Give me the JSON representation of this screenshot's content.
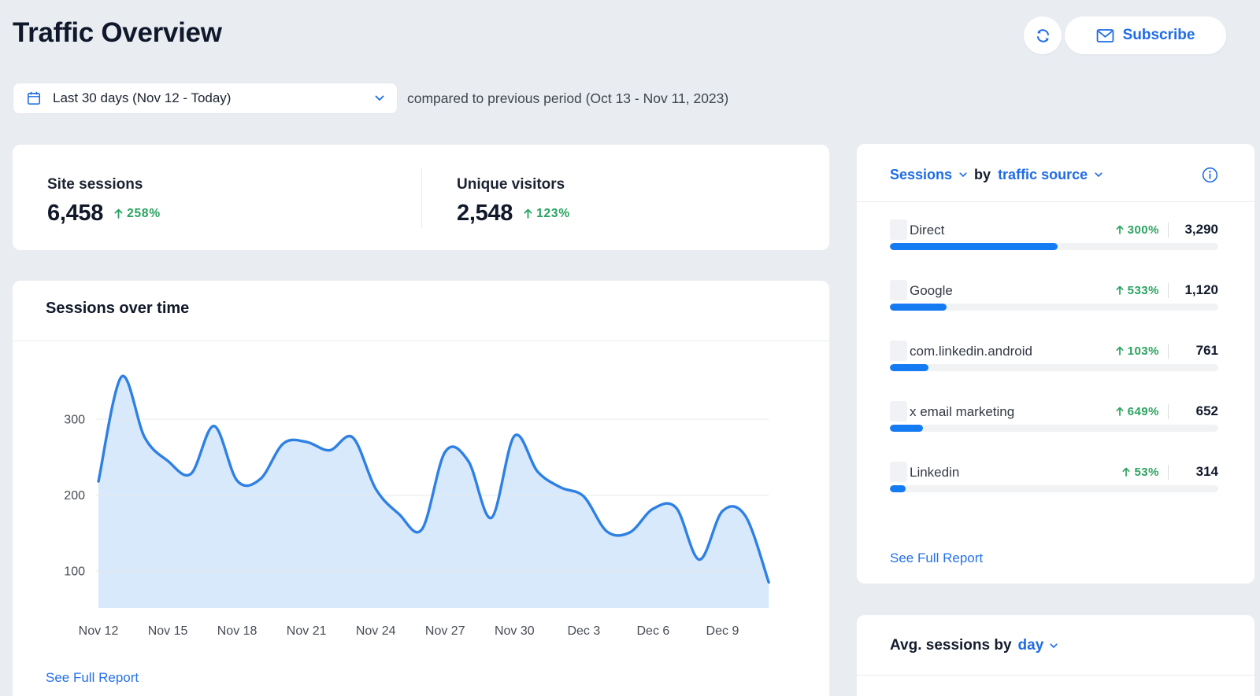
{
  "colors": {
    "accent_blue": "#1e6ce6",
    "bar_blue": "#157bf2",
    "chart_line_blue": "#2e80e4",
    "chart_fill_blue": "#d7e9fb",
    "positive_green": "#2aa35f",
    "page_background": "#e9edf2",
    "card_background": "#ffffff",
    "dark_text": "#10182a"
  },
  "header": {
    "title": "Traffic Overview",
    "subscribe_button": "Subscribe"
  },
  "filters": {
    "date_range": "Last 30 days (Nov 12 - Today)",
    "comparison_note": "compared to previous period (Oct 13 - Nov 11, 2023)"
  },
  "kpis": [
    {
      "label": "Site sessions",
      "value": "6,458",
      "change": "258%",
      "direction": "up"
    },
    {
      "label": "Unique visitors",
      "value": "2,548",
      "change": "123%",
      "direction": "up"
    }
  ],
  "sessions_over_time": {
    "title": "Sessions over time",
    "see_full_report": "See Full Report"
  },
  "chart_data": {
    "type": "area",
    "title": "Sessions over time",
    "x": [
      "Nov 12",
      "Nov 13",
      "Nov 14",
      "Nov 15",
      "Nov 16",
      "Nov 17",
      "Nov 18",
      "Nov 19",
      "Nov 20",
      "Nov 21",
      "Nov 22",
      "Nov 23",
      "Nov 24",
      "Nov 25",
      "Nov 26",
      "Nov 27",
      "Nov 28",
      "Nov 29",
      "Nov 30",
      "Dec 1",
      "Dec 2",
      "Dec 3",
      "Dec 4",
      "Dec 5",
      "Dec 6",
      "Dec 7",
      "Dec 8",
      "Dec 9",
      "Dec 10",
      "Dec 11"
    ],
    "values": [
      218,
      356,
      276,
      245,
      228,
      291,
      219,
      221,
      268,
      270,
      259,
      276,
      208,
      175,
      155,
      257,
      245,
      170,
      278,
      231,
      210,
      198,
      152,
      151,
      182,
      183,
      115,
      179,
      172,
      85
    ],
    "xticks": [
      "Nov 12",
      "Nov 15",
      "Nov 18",
      "Nov 21",
      "Nov 24",
      "Nov 27",
      "Nov 30",
      "Dec 3",
      "Dec 6",
      "Dec 9"
    ],
    "yticks": [
      100,
      200,
      300
    ],
    "ylim": [
      50,
      390
    ],
    "grid": true,
    "legend": false,
    "xlabel": "",
    "ylabel": ""
  },
  "traffic_sources": {
    "metric": "Sessions",
    "by": "by",
    "dimension": "traffic source",
    "rows": [
      {
        "label": "Direct",
        "change": "300%",
        "value": "3,290",
        "share": 0.51,
        "redacted_prefix": false
      },
      {
        "label": "Google",
        "change": "533%",
        "value": "1,120",
        "share": 0.173,
        "redacted_prefix": false
      },
      {
        "label": "com.linkedin.android",
        "change": "103%",
        "value": "761",
        "share": 0.118,
        "redacted_prefix": false
      },
      {
        "label": "x email marketing",
        "change": "649%",
        "value": "652",
        "share": 0.101,
        "redacted_prefix": true
      },
      {
        "label": "Linkedin",
        "change": "53%",
        "value": "314",
        "share": 0.049,
        "redacted_prefix": false
      }
    ],
    "see_full_report": "See Full Report"
  },
  "avg_sessions": {
    "title_prefix": "Avg. sessions by",
    "dimension": "day"
  }
}
